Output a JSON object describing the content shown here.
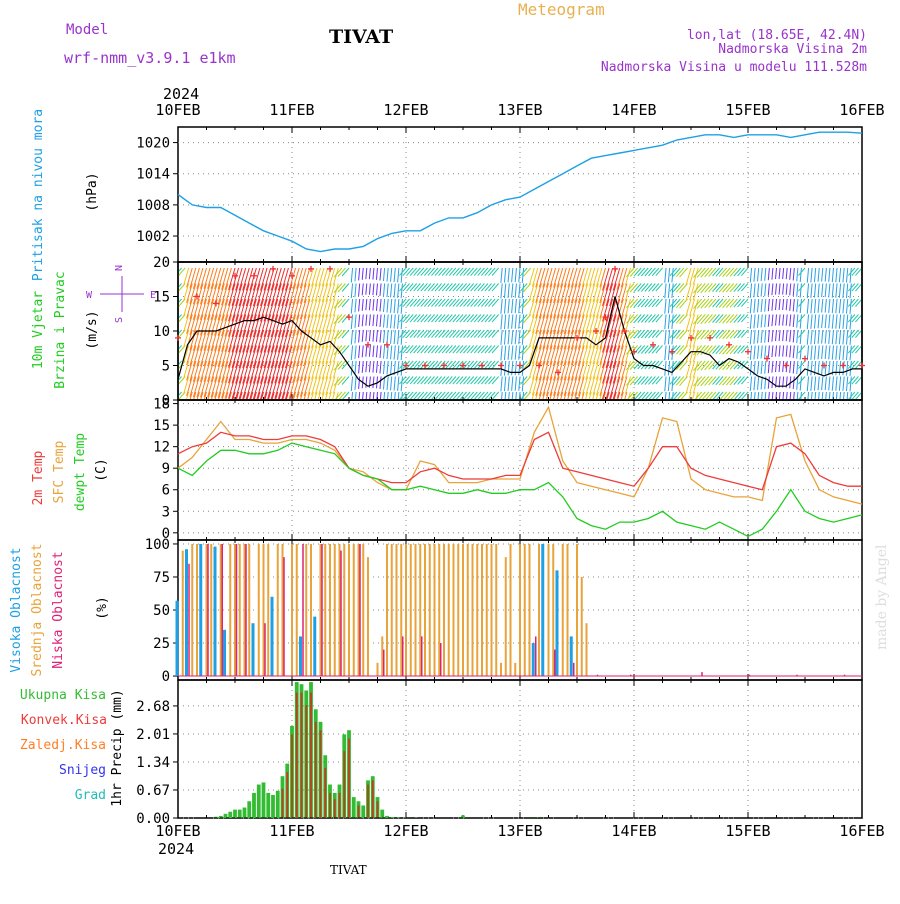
{
  "header": {
    "model_label": "Model",
    "model_name": "wrf-nmm_v3.9.1 e1km",
    "station": "TIVAT",
    "product": "Meteogram",
    "lonlat": "lon,lat (18.65E, 42.4N)",
    "elevation": "Nadmorska Visina 2m",
    "model_elevation": "Nadmorska Visina u modelu 111.528m",
    "footer_station": "TIVAT",
    "credit": "made by Angel"
  },
  "time_axis": {
    "year": "2024",
    "labels": [
      "10FEB",
      "11FEB",
      "12FEB",
      "13FEB",
      "14FEB",
      "15FEB",
      "16FEB"
    ],
    "hours_total": 144
  },
  "colors": {
    "pressure": "#1ea0e6",
    "wind_speed": "#000000",
    "t2m": "#ee3b3b",
    "tsfc": "#e8a33a",
    "dewpt": "#22cc22",
    "high_cloud": "#1ea0e6",
    "mid_cloud": "#e8a33a",
    "low_cloud": "#dd2277",
    "precip_total": "#33bb33",
    "precip_conv": "#ee3b3b",
    "precip_frozen": "#ff7f27",
    "snow": "#3333ee",
    "hail": "#22bbbb"
  },
  "chart_data": [
    {
      "type": "line",
      "id": "pressure",
      "ylabel": [
        "Pritisak na nivou mora",
        "(hPa)"
      ],
      "yticks": [
        1002,
        1008,
        1014,
        1020
      ],
      "ylim": [
        997,
        1023
      ],
      "grid": true,
      "x_hours": [
        0,
        3,
        6,
        9,
        12,
        15,
        18,
        21,
        24,
        27,
        30,
        33,
        36,
        39,
        42,
        45,
        48,
        51,
        54,
        57,
        60,
        63,
        66,
        69,
        72,
        75,
        78,
        81,
        84,
        87,
        90,
        93,
        96,
        99,
        102,
        105,
        108,
        111,
        114,
        117,
        120,
        123,
        126,
        129,
        132,
        135,
        138,
        141,
        144
      ],
      "values": [
        1010,
        1008,
        1007.5,
        1007.5,
        1006,
        1004.5,
        1003,
        1002,
        1001,
        999.5,
        999,
        999.5,
        999.5,
        1000,
        1001.5,
        1002.5,
        1003,
        1003,
        1004.5,
        1005.5,
        1005.5,
        1006.5,
        1008,
        1009,
        1009.5,
        1011,
        1012.5,
        1014,
        1015.5,
        1017,
        1017.5,
        1018,
        1018.5,
        1019,
        1019.5,
        1020.5,
        1021,
        1021.5,
        1021.5,
        1021,
        1021.5,
        1021.5,
        1021.5,
        1021,
        1021.5,
        1022,
        1022,
        1022,
        1021.8
      ]
    },
    {
      "type": "line",
      "id": "wind",
      "ylabel": [
        "10m Vjetar",
        "Brzina i Pravac",
        "(m/s)"
      ],
      "compass": [
        "N",
        "E",
        "S",
        "W"
      ],
      "yticks": [
        0,
        5,
        10,
        15,
        20
      ],
      "ylim": [
        0,
        20
      ],
      "grid": true,
      "series": [
        {
          "role": "speed",
          "x_hours": [
            0,
            2,
            4,
            6,
            8,
            10,
            12,
            14,
            16,
            18,
            20,
            22,
            24,
            26,
            28,
            30,
            32,
            34,
            36,
            38,
            40,
            42,
            44,
            46,
            48,
            50,
            52,
            54,
            56,
            58,
            60,
            62,
            64,
            66,
            68,
            70,
            72,
            74,
            76,
            78,
            80,
            82,
            84,
            86,
            88,
            90,
            92,
            94,
            96,
            98,
            100,
            102,
            104,
            106,
            108,
            110,
            112,
            114,
            116,
            118,
            120,
            122,
            124,
            126,
            128,
            130,
            132,
            134,
            136,
            138,
            140,
            142,
            144
          ],
          "values": [
            3,
            8,
            10,
            10,
            10,
            10.5,
            11,
            11.5,
            11.5,
            12,
            11.5,
            11,
            11.5,
            10,
            9,
            8,
            8.5,
            7,
            5,
            3,
            2,
            2.5,
            3.5,
            4,
            4.5,
            4.5,
            4.5,
            4.5,
            4.5,
            4.5,
            4.5,
            4.5,
            4.5,
            4.5,
            4.5,
            4,
            4,
            5,
            9,
            9,
            9,
            9,
            9,
            9,
            8,
            9,
            15,
            10,
            6,
            5,
            5,
            4.5,
            4,
            5.5,
            7,
            7,
            6.5,
            5,
            6,
            5.5,
            4.5,
            3.5,
            3,
            2,
            2,
            3,
            4.5,
            4,
            3.5,
            4,
            4,
            4.5,
            4.5
          ]
        },
        {
          "role": "gust",
          "x_hours": [
            0,
            4,
            8,
            12,
            16,
            20,
            24,
            28,
            32,
            36,
            40,
            44,
            48,
            52,
            56,
            60,
            64,
            68,
            72,
            76,
            80,
            84,
            88,
            90,
            92,
            94,
            96,
            100,
            104,
            108,
            112,
            116,
            120,
            124,
            128,
            132,
            136,
            140,
            144
          ],
          "values": [
            9,
            15,
            14,
            18,
            18,
            19,
            18,
            19,
            19,
            12,
            8,
            8,
            5,
            5,
            5,
            5,
            5,
            5,
            5,
            5,
            4,
            9,
            10,
            12,
            19,
            10,
            7,
            8,
            7,
            9,
            9,
            8,
            7,
            6,
            5,
            6,
            5,
            5,
            5
          ]
        }
      ]
    },
    {
      "type": "line",
      "id": "temperature",
      "ylabel": [
        "2m Temp",
        "SFC Temp",
        "dewpt Temp",
        "(C)"
      ],
      "yticks": [
        0,
        3,
        6,
        9,
        12,
        15,
        18
      ],
      "ylim": [
        -1,
        18.5
      ],
      "grid": true,
      "x_hours": [
        0,
        3,
        6,
        9,
        12,
        15,
        18,
        21,
        24,
        27,
        30,
        33,
        36,
        39,
        42,
        45,
        48,
        51,
        54,
        57,
        60,
        63,
        66,
        69,
        72,
        75,
        78,
        81,
        84,
        87,
        90,
        93,
        96,
        99,
        102,
        105,
        108,
        111,
        114,
        117,
        120,
        123,
        126,
        129,
        132,
        135,
        138,
        141,
        144
      ],
      "series": [
        {
          "name": "2m Temp",
          "values": [
            11,
            12,
            12.5,
            14,
            13.5,
            13.5,
            13,
            13,
            13.5,
            13.5,
            13,
            12,
            9,
            8,
            7.5,
            7,
            7,
            8.5,
            9,
            8,
            7.5,
            7.5,
            7.5,
            8,
            8,
            13,
            14,
            9,
            8.5,
            8,
            7.5,
            7,
            6.5,
            9,
            12,
            12,
            9,
            8,
            7.5,
            7,
            6.5,
            6,
            12,
            12.5,
            11,
            8,
            7,
            6.5,
            6.5
          ]
        },
        {
          "name": "SFC Temp",
          "values": [
            9,
            10.5,
            13,
            15.5,
            13,
            13,
            12.5,
            12.5,
            13,
            13,
            12.5,
            11.5,
            9,
            8.5,
            7,
            6,
            6,
            10,
            9.5,
            7,
            7,
            7,
            7.5,
            7.5,
            7.5,
            14,
            17.5,
            10,
            7,
            6.5,
            6,
            5.5,
            5,
            9,
            16,
            15.5,
            7.5,
            6,
            5.5,
            5,
            5,
            4.5,
            16,
            16.5,
            10,
            6,
            5,
            4.5,
            4
          ]
        },
        {
          "name": "dewpt Temp",
          "values": [
            9,
            8,
            10,
            11.5,
            11.5,
            11,
            11,
            11.5,
            12.5,
            12,
            11.5,
            11,
            9,
            8,
            7.5,
            6,
            6,
            6.5,
            6,
            5.5,
            5.5,
            6,
            5.5,
            5.5,
            6,
            6,
            7,
            5,
            2,
            1,
            0.5,
            1.5,
            1.5,
            2,
            3,
            1.5,
            1,
            0.5,
            1.5,
            0.5,
            -0.5,
            0.5,
            3,
            6,
            3,
            2,
            1.5,
            2,
            2.5
          ]
        }
      ]
    },
    {
      "type": "bar",
      "id": "clouds",
      "ylabel": [
        "Visoka Oblacnost",
        "Srednja Oblacnost",
        "Niska Oblacnost",
        "(%)"
      ],
      "yticks": [
        0,
        25,
        50,
        75,
        100
      ],
      "ylim": [
        -3,
        103
      ],
      "grid": true,
      "series": [
        {
          "name": "Visoka Oblacnost",
          "x_hours": [
            0,
            2,
            5,
            8,
            10,
            16,
            20,
            26,
            29,
            75,
            77,
            80,
            83
          ],
          "values": [
            57,
            96,
            100,
            98,
            35,
            40,
            60,
            30,
            45,
            25,
            100,
            80,
            30
          ]
        },
        {
          "name": "Srednja Oblacnost",
          "x_hours": [
            1,
            3,
            4,
            6,
            7,
            9,
            11,
            12,
            13,
            14,
            15,
            17,
            18,
            19,
            21,
            22,
            24,
            25,
            27,
            28,
            30,
            31,
            32,
            33,
            34,
            35,
            36,
            37,
            38,
            39,
            40,
            42,
            43,
            44,
            45,
            46,
            47,
            48,
            49,
            50,
            51,
            52,
            53,
            54,
            55,
            56,
            57,
            58,
            59,
            60,
            61,
            62,
            63,
            64,
            65,
            66,
            67,
            68,
            69,
            70,
            71,
            72,
            73,
            74,
            76,
            78,
            79,
            81,
            82,
            84,
            85,
            86
          ],
          "values": [
            95,
            100,
            100,
            100,
            100,
            100,
            100,
            100,
            100,
            100,
            100,
            100,
            100,
            100,
            100,
            100,
            100,
            100,
            100,
            100,
            100,
            100,
            100,
            100,
            100,
            100,
            100,
            100,
            100,
            100,
            90,
            10,
            30,
            100,
            100,
            100,
            100,
            100,
            100,
            100,
            100,
            100,
            100,
            100,
            100,
            100,
            100,
            100,
            100,
            100,
            100,
            100,
            100,
            100,
            100,
            100,
            100,
            10,
            90,
            100,
            10,
            100,
            100,
            100,
            100,
            100,
            100,
            100,
            100,
            100,
            75,
            40
          ]
        },
        {
          "name": "Niska Oblacnost",
          "x_hours": [
            2,
            6,
            9,
            12,
            14,
            18,
            22,
            26,
            30,
            34,
            38,
            43,
            47,
            51,
            55,
            59,
            63,
            67,
            71,
            75,
            79,
            83,
            88,
            95,
            110,
            120,
            130,
            140
          ],
          "values": [
            85,
            100,
            100,
            100,
            100,
            40,
            90,
            100,
            100,
            95,
            100,
            20,
            30,
            30,
            25,
            0,
            0,
            0,
            0,
            30,
            20,
            10,
            1,
            1,
            3,
            1,
            1,
            1
          ]
        }
      ]
    },
    {
      "type": "bar",
      "id": "precip",
      "ylabel": [
        "1hr Precip (mm)"
      ],
      "legend": [
        "Ukupna Kisa",
        "Konvek.Kisa",
        "Zaledj.Kisa",
        "Snijeg",
        "Grad"
      ],
      "yticks": [
        0,
        0.67,
        1.34,
        2.01,
        2.68
      ],
      "ylim": [
        0,
        3.3
      ],
      "grid": true,
      "series": [
        {
          "name": "Ukupna Kisa",
          "x_hours": [
            8,
            9,
            10,
            11,
            12,
            13,
            14,
            15,
            16,
            17,
            18,
            19,
            20,
            21,
            22,
            23,
            24,
            25,
            26,
            27,
            28,
            29,
            30,
            31,
            32,
            33,
            34,
            35,
            36,
            37,
            38,
            39,
            40,
            41,
            42,
            43,
            44,
            45,
            46,
            47,
            48,
            50,
            52,
            60,
            76
          ],
          "values": [
            0.03,
            0.05,
            0.1,
            0.15,
            0.2,
            0.2,
            0.25,
            0.4,
            0.6,
            0.8,
            0.85,
            0.6,
            0.55,
            0.65,
            1.0,
            1.3,
            2.2,
            3.25,
            3.2,
            3.05,
            3.25,
            2.6,
            2.3,
            1.5,
            0.8,
            0.6,
            0.8,
            2.0,
            2.1,
            0.5,
            0.4,
            0.3,
            0.9,
            1.0,
            0.5,
            0.2,
            0.05,
            0.02,
            0.02,
            0.01,
            0.01,
            0.01,
            0.01,
            0.06,
            0.02
          ]
        },
        {
          "name": "Konvek.Kisa",
          "x_hours": [
            22,
            23,
            24,
            25,
            26,
            27,
            28,
            29,
            30,
            31,
            32,
            33,
            34,
            35,
            36,
            38,
            40,
            41,
            42
          ],
          "values": [
            0.7,
            1.1,
            2.0,
            3.0,
            3.0,
            2.7,
            3.0,
            2.3,
            2.1,
            1.2,
            0.6,
            0.45,
            0.6,
            1.6,
            1.9,
            0.3,
            0.8,
            0.9,
            0.4
          ]
        }
      ]
    }
  ]
}
